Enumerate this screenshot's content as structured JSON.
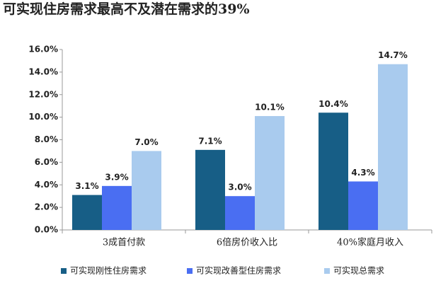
{
  "chart_data": {
    "type": "bar",
    "title": "可实现住房需求最高不及潜在需求的39%",
    "categories": [
      "3成首付款",
      "6倍房价收入比",
      "40%家庭月收入"
    ],
    "series": [
      {
        "name": "可实现刚性住房需求",
        "color": "#175e86",
        "values": [
          3.1,
          7.1,
          10.4
        ],
        "value_labels": [
          "3.1%",
          "7.1%",
          "10.4%"
        ]
      },
      {
        "name": "可实现改善型住房需求",
        "color": "#4a6ef2",
        "values": [
          3.9,
          3.0,
          4.3
        ],
        "value_labels": [
          "3.9%",
          "3.0%",
          "4.3%"
        ]
      },
      {
        "name": "可实现总需求",
        "color": "#a9cbee",
        "values": [
          7.0,
          10.1,
          14.7
        ],
        "value_labels": [
          "7.0%",
          "10.1%",
          "14.7%"
        ]
      }
    ],
    "ylim": [
      0,
      16
    ],
    "yticks": [
      {
        "value": 0,
        "label": "0.0%"
      },
      {
        "value": 2,
        "label": "2.0%"
      },
      {
        "value": 4,
        "label": "4.0%"
      },
      {
        "value": 6,
        "label": "6.0%"
      },
      {
        "value": 8,
        "label": "8.0%"
      },
      {
        "value": 10,
        "label": "10.0%"
      },
      {
        "value": 12,
        "label": "12.0%"
      },
      {
        "value": 14,
        "label": "14.0%"
      },
      {
        "value": 16,
        "label": "16.0%"
      }
    ]
  }
}
